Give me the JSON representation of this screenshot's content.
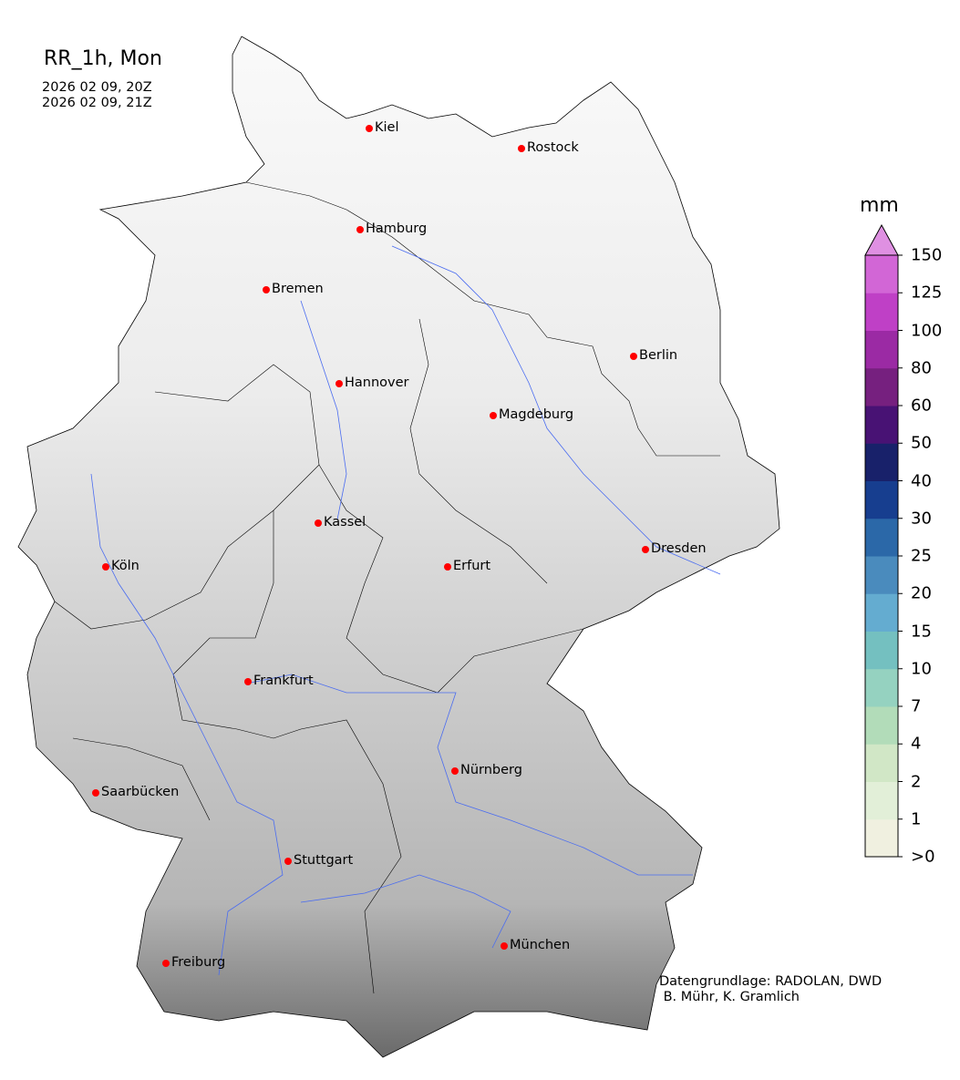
{
  "title": "RR_1h, Mon",
  "time_start": "2026 02 09, 20Z",
  "time_end": "2026 02 09, 21Z",
  "credit_line1": "Datengrundlage: RADOLAN, DWD",
  "credit_line2": " B. Mühr, K. Gramlich",
  "colorbar": {
    "unit": "mm",
    "labels": [
      ">0",
      "1",
      "2",
      "4",
      "7",
      "10",
      "15",
      "20",
      "25",
      "30",
      "40",
      "50",
      "60",
      "80",
      "100",
      "125",
      "150"
    ],
    "colors": [
      "#f0f0e0",
      "#e2efd8",
      "#d1e7c6",
      "#b2dcb9",
      "#95d2c0",
      "#74c0c0",
      "#64acd0",
      "#4a8bbd",
      "#2b68a8",
      "#173e8f",
      "#18216a",
      "#481274",
      "#76207f",
      "#9b2aa4",
      "#bf40c6",
      "#d266d6"
    ],
    "extend_color": "#df90e2"
  },
  "cities": [
    "Kiel",
    "Rostock",
    "Hamburg",
    "Bremen",
    "Berlin",
    "Hannover",
    "Magdeburg",
    "Kassel",
    "Köln",
    "Erfurt",
    "Dresden",
    "Frankfurt",
    "Nürnberg",
    "Saarbücken",
    "Stuttgart",
    "Freiburg",
    "München"
  ],
  "marker_color": "#ff0000"
}
